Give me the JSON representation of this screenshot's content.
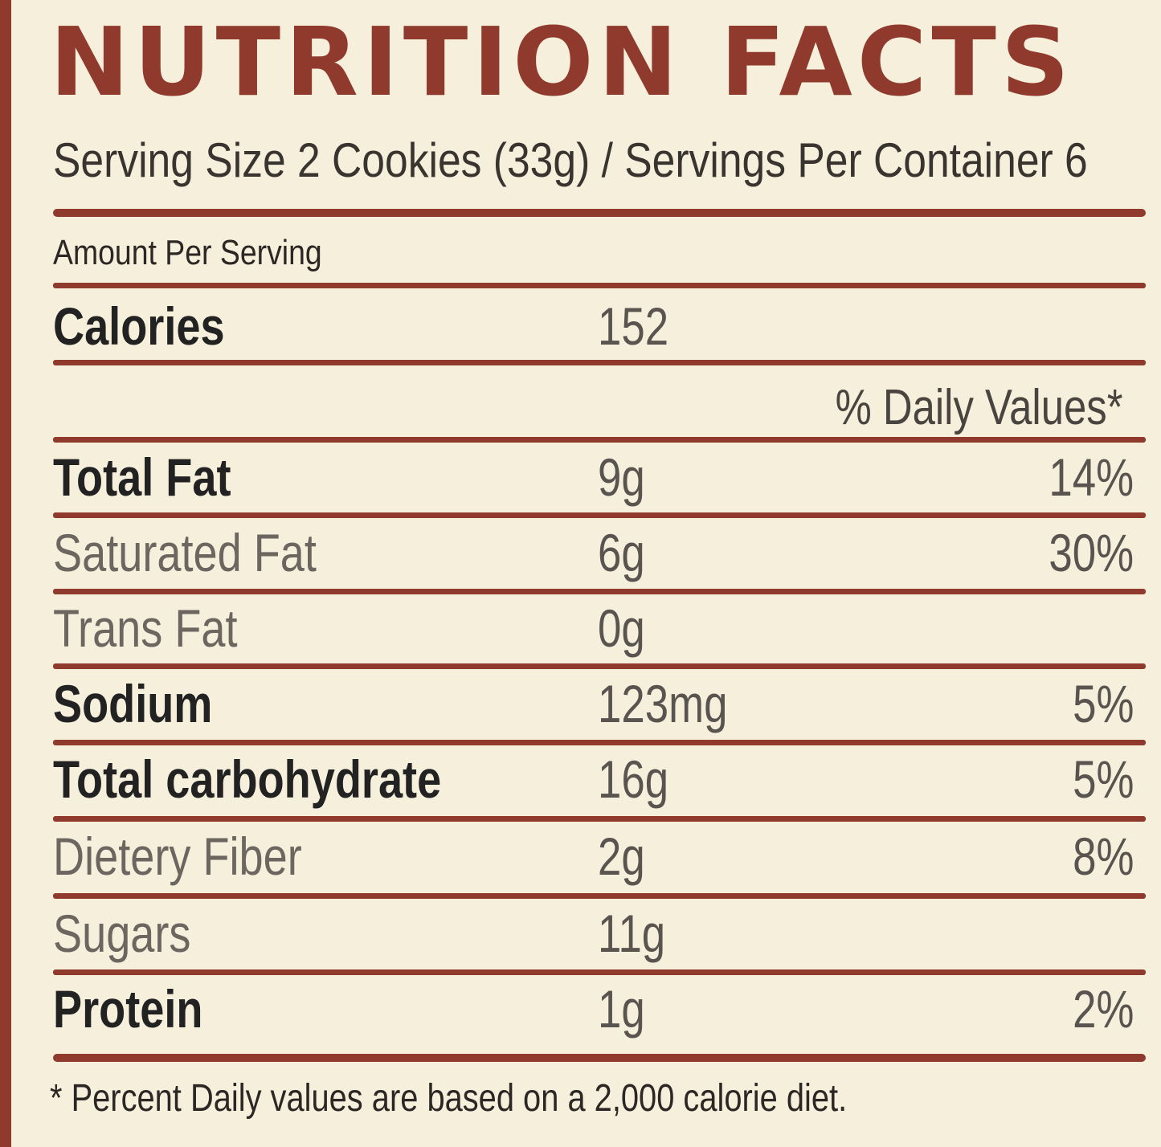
{
  "title": "NUTRITION FACTS",
  "serving_line": "Serving Size 2 Cookies (33g) / Servings Per Container 6",
  "amount_per_serving": "Amount Per Serving",
  "calories": {
    "label": "Calories",
    "value": "152"
  },
  "daily_values_header": "% Daily Values*",
  "nutrients": [
    {
      "name": "Total Fat",
      "amount": "9g",
      "dv": "14%"
    },
    {
      "name": "Saturated Fat",
      "amount": "6g",
      "dv": "30%"
    },
    {
      "name": "Trans Fat",
      "amount": "0g",
      "dv": ""
    },
    {
      "name": "Sodium",
      "amount": "123mg",
      "dv": "5%"
    },
    {
      "name": "Total carbohydrate",
      "amount": "16g",
      "dv": "5%"
    },
    {
      "name": "Dietery Fiber",
      "amount": "2g",
      "dv": "8%"
    },
    {
      "name": "Sugars",
      "amount": "11g",
      "dv": ""
    },
    {
      "name": "Protein",
      "amount": "1g",
      "dv": "2%"
    }
  ],
  "footnote": "* Percent Daily values are based on a 2,000 calorie diet.",
  "colors": {
    "accent": "#8f3a2c",
    "background": "#f5efdc",
    "text": "#222222"
  }
}
